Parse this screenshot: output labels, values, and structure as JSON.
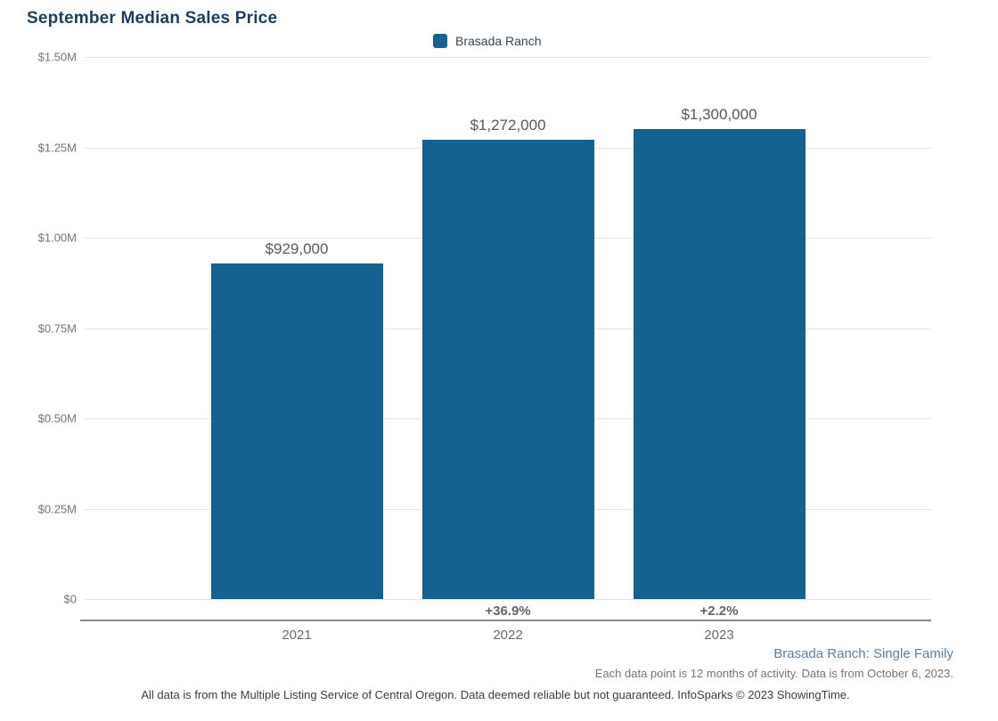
{
  "title": "September Median Sales Price",
  "legend": {
    "label": "Brasada Ranch"
  },
  "chart_data": {
    "type": "bar",
    "title": "September Median Sales Price",
    "series_name": "Brasada Ranch",
    "categories": [
      "2021",
      "2022",
      "2023"
    ],
    "values": [
      929000,
      1272000,
      1300000
    ],
    "value_labels": [
      "$929,000",
      "$1,272,000",
      "$1,300,000"
    ],
    "pct_change_labels": [
      "",
      "+36.9%",
      "+2.2%"
    ],
    "xlabel": "",
    "ylabel": "",
    "ylim": [
      0,
      1500000
    ],
    "ytick_values": [
      0,
      250000,
      500000,
      750000,
      1000000,
      1250000,
      1500000
    ],
    "ytick_labels": [
      "$0",
      "$0.25M",
      "$0.50M",
      "$0.75M",
      "$1.00M",
      "$1.25M",
      "$1.50M"
    ],
    "grid": true,
    "legend_position": "top-center"
  },
  "footer": {
    "series_note": "Brasada Ranch: Single Family",
    "data_note": "Each data point is 12 months of activity. Data is from October 6, 2023.",
    "disclaimer": "All data is from the Multiple Listing Service of Central Oregon. Data deemed reliable but not guaranteed. InfoSparks © 2023 ShowingTime."
  },
  "colors": {
    "bar": "#15618F",
    "title": "#1D3E5E",
    "grid_line": "#E7E7E7",
    "axis_line": "#8A8A8A",
    "y_axis_label": "#757575",
    "x_axis_label": "#6B6B6B",
    "data_label": "#57585A",
    "pct_label": "#666666",
    "legend_text": "#33475B",
    "footer_link": "#5B7EA8",
    "footer_note": "#757575",
    "disclaimer_text": "#3C3C3C"
  }
}
